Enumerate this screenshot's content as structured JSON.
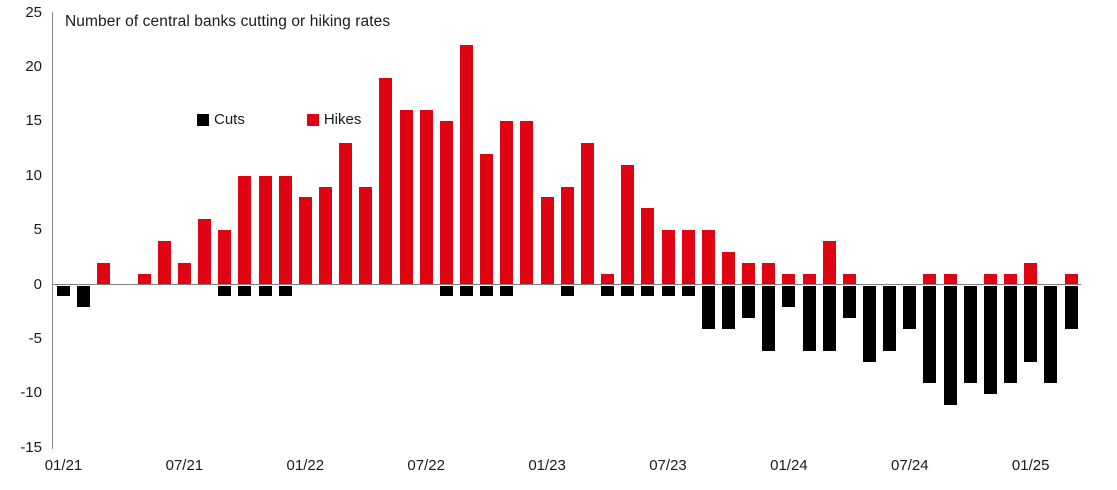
{
  "title": "Number of central banks cutting or hiking rates",
  "legend": {
    "cuts_label": "Cuts",
    "hikes_label": "Hikes"
  },
  "colors": {
    "hikes": "#e00413",
    "cuts": "#000000",
    "axis_line": "#808080",
    "text": "#1a1a1a"
  },
  "y_axis": {
    "ticks": [
      25,
      20,
      15,
      10,
      5,
      0,
      -5,
      -10,
      -15
    ],
    "min": -15,
    "max": 25
  },
  "x_axis": {
    "tick_labels": [
      "01/21",
      "07/21",
      "01/22",
      "07/22",
      "01/23",
      "07/23",
      "01/24",
      "07/24",
      "01/25"
    ],
    "months_between_ticks": 6
  },
  "chart_data": {
    "type": "bar",
    "title": "Number of central banks cutting or hiking rates",
    "xlabel": "",
    "ylabel": "",
    "ylim": [
      -15,
      25
    ],
    "grid": false,
    "legend_position": "inside-top-left",
    "categories": [
      "01/21",
      "02/21",
      "03/21",
      "04/21",
      "05/21",
      "06/21",
      "07/21",
      "08/21",
      "09/21",
      "10/21",
      "11/21",
      "12/21",
      "01/22",
      "02/22",
      "03/22",
      "04/22",
      "05/22",
      "06/22",
      "07/22",
      "08/22",
      "09/22",
      "10/22",
      "11/22",
      "12/22",
      "01/23",
      "02/23",
      "03/23",
      "04/23",
      "05/23",
      "06/23",
      "07/23",
      "08/23",
      "09/23",
      "10/23",
      "11/23",
      "12/23",
      "01/24",
      "02/24",
      "03/24",
      "04/24",
      "05/24",
      "06/24",
      "07/24",
      "08/24",
      "09/24",
      "10/24",
      "11/24",
      "12/24",
      "01/25",
      "02/25",
      "03/25"
    ],
    "series": [
      {
        "name": "Cuts",
        "color": "#000000",
        "values": [
          -1,
          -2,
          0,
          0,
          0,
          0,
          0,
          0,
          -1,
          -1,
          -1,
          -1,
          0,
          0,
          0,
          0,
          0,
          0,
          0,
          -1,
          -1,
          -1,
          -1,
          0,
          0,
          -1,
          0,
          -1,
          -1,
          -1,
          -1,
          -1,
          -4,
          -4,
          -3,
          -6,
          -2,
          -6,
          -6,
          -3,
          -7,
          -6,
          -4,
          -9,
          -11,
          -9,
          -10,
          -9,
          -7,
          -9,
          -4
        ]
      },
      {
        "name": "Hikes",
        "color": "#e00413",
        "values": [
          0,
          0,
          2,
          0,
          1,
          4,
          2,
          6,
          5,
          10,
          10,
          10,
          8,
          9,
          13,
          9,
          19,
          16,
          16,
          15,
          22,
          12,
          15,
          15,
          8,
          9,
          13,
          1,
          11,
          7,
          5,
          5,
          5,
          3,
          2,
          2,
          1,
          1,
          4,
          1,
          0,
          0,
          0,
          1,
          1,
          0,
          1,
          1,
          2,
          0,
          1
        ]
      }
    ]
  }
}
